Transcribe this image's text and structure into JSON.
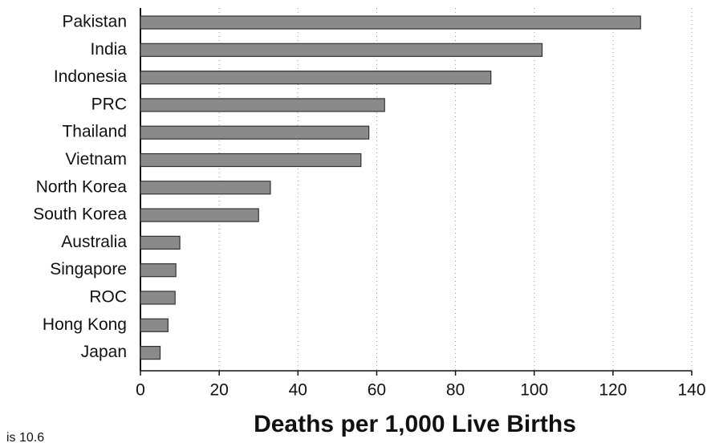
{
  "chart_data": {
    "type": "bar",
    "orientation": "horizontal",
    "categories": [
      "Pakistan",
      "India",
      "Indonesia",
      "PRC",
      "Thailand",
      "Vietnam",
      "North Korea",
      "South Korea",
      "Australia",
      "Singapore",
      "ROC",
      "Hong Kong",
      "Japan"
    ],
    "values": [
      127,
      102,
      89,
      62,
      58,
      56,
      33,
      30,
      10,
      9,
      8.8,
      7,
      5
    ],
    "color": "#8a8a8a",
    "xlim": [
      0,
      140
    ],
    "xticks": [
      0,
      20,
      40,
      60,
      80,
      100,
      120,
      140
    ],
    "xlabel": "Deaths per 1,000 Live Births",
    "annotation": "is 10.6",
    "grid": true
  }
}
